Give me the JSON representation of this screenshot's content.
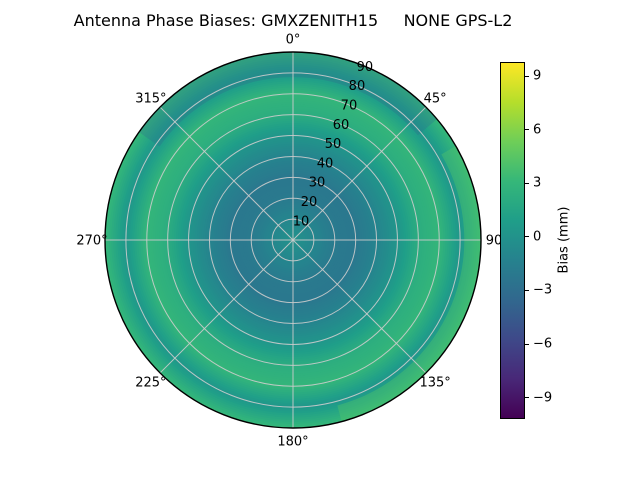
{
  "title": "Antenna Phase Biases: GMXZENITH15     NONE GPS-L2",
  "chart_data": {
    "type": "heatmap",
    "projection": "polar",
    "title": "Antenna Phase Biases: GMXZENITH15     NONE GPS-L2",
    "antenna": "GMXZENITH15",
    "radome": "NONE",
    "signal": "GPS-L2",
    "azimuth_tick_labels": [
      "0°",
      "45°",
      "90",
      "135°",
      "180°",
      "225°",
      "270°",
      "315°"
    ],
    "azimuth_step_deg": 45,
    "zenith_tick_labels": [
      "10",
      "20",
      "30",
      "40",
      "50",
      "60",
      "70",
      "80",
      "90"
    ],
    "radial_label_azimuth_deg": 22.5,
    "grid": true,
    "grid_color": "#cccccc",
    "edge_color": "#000000",
    "background": "#ffffff",
    "colorbar": {
      "label": "Bias (mm)",
      "ticks": [
        9,
        6,
        3,
        0,
        -3,
        -6,
        -9
      ],
      "vmin": -10.2,
      "vmax": 9.8,
      "colormap": "viridis",
      "colormap_stops": [
        "#440154",
        "#482878",
        "#3e4989",
        "#31688e",
        "#26828e",
        "#1f9e89",
        "#35b779",
        "#6ece58",
        "#b5de2b",
        "#fde725"
      ]
    },
    "radial_profile": {
      "zenith_deg": [
        0,
        10,
        20,
        30,
        40,
        50,
        60,
        70,
        80,
        90
      ],
      "bias_mm": [
        0.0,
        -1.0,
        -2.0,
        -2.2,
        -1.2,
        0.2,
        2.2,
        3.0,
        0.3,
        3.2
      ]
    },
    "angular_patches": [
      {
        "az_start": -55,
        "az_end": 50,
        "zen_start": 78,
        "zen_end": 90,
        "color": "#2e6d8e",
        "opacity": 0.3
      },
      {
        "az_start": 60,
        "az_end": 165,
        "zen_start": 82,
        "zen_end": 90,
        "color": "#52c569",
        "opacity": 0.4
      }
    ]
  }
}
